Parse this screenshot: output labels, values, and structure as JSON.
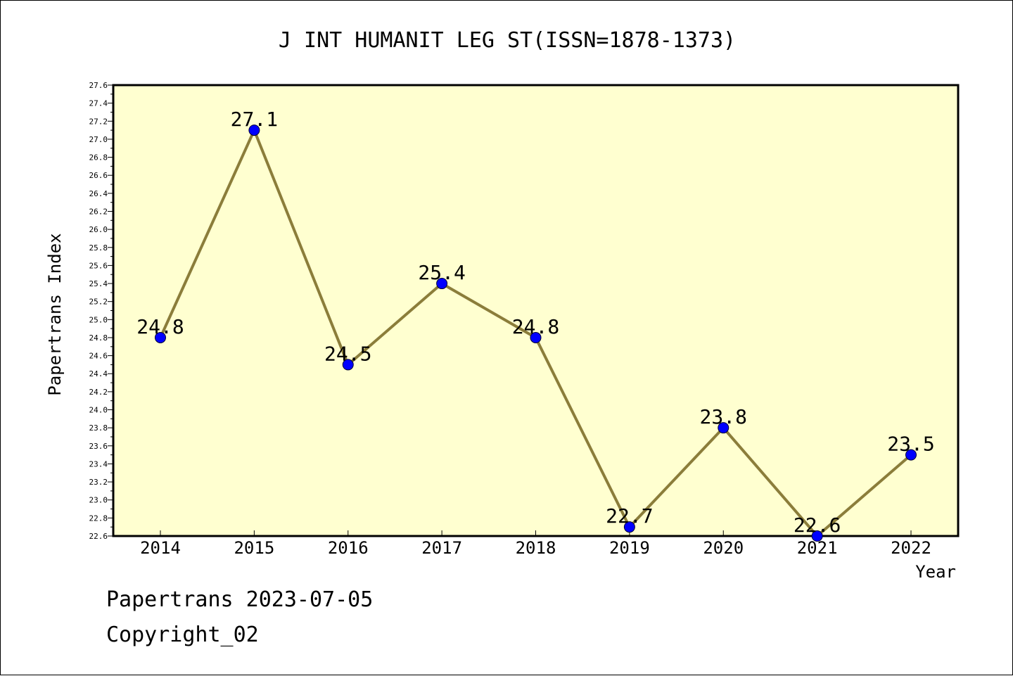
{
  "chart_data": {
    "type": "line",
    "title": "J INT HUMANIT LEG ST(ISSN=1878-1373)",
    "xlabel": "Year",
    "ylabel": "Papertrans Index",
    "categories": [
      "2014",
      "2015",
      "2016",
      "2017",
      "2018",
      "2019",
      "2020",
      "2021",
      "2022"
    ],
    "series": [
      {
        "values": [
          24.8,
          27.1,
          24.5,
          25.4,
          24.8,
          22.7,
          23.8,
          22.6,
          23.5
        ],
        "labels": [
          "24.8",
          "27.1",
          "24.5",
          "25.4",
          "24.8",
          "22.7",
          "23.8",
          "22.6",
          "23.5"
        ]
      }
    ],
    "ylim": [
      22.6,
      27.6
    ],
    "yticks": [
      "22.6",
      "22.8",
      "23.0",
      "23.2",
      "23.4",
      "23.6",
      "23.8",
      "24.0",
      "24.2",
      "24.4",
      "24.6",
      "24.8",
      "25.0",
      "25.2",
      "25.4",
      "25.6",
      "25.8",
      "26.0",
      "26.2",
      "26.4",
      "26.6",
      "26.8",
      "27.0",
      "27.2",
      "27.4",
      "27.6"
    ],
    "grid": false,
    "colors": {
      "plot_background": "#ffffd0",
      "line": "#8b7d3a",
      "marker": "#0000ff"
    }
  },
  "footer": {
    "date_text": "Papertrans 2023-07-05",
    "copyright_text": "Copyright_02"
  }
}
